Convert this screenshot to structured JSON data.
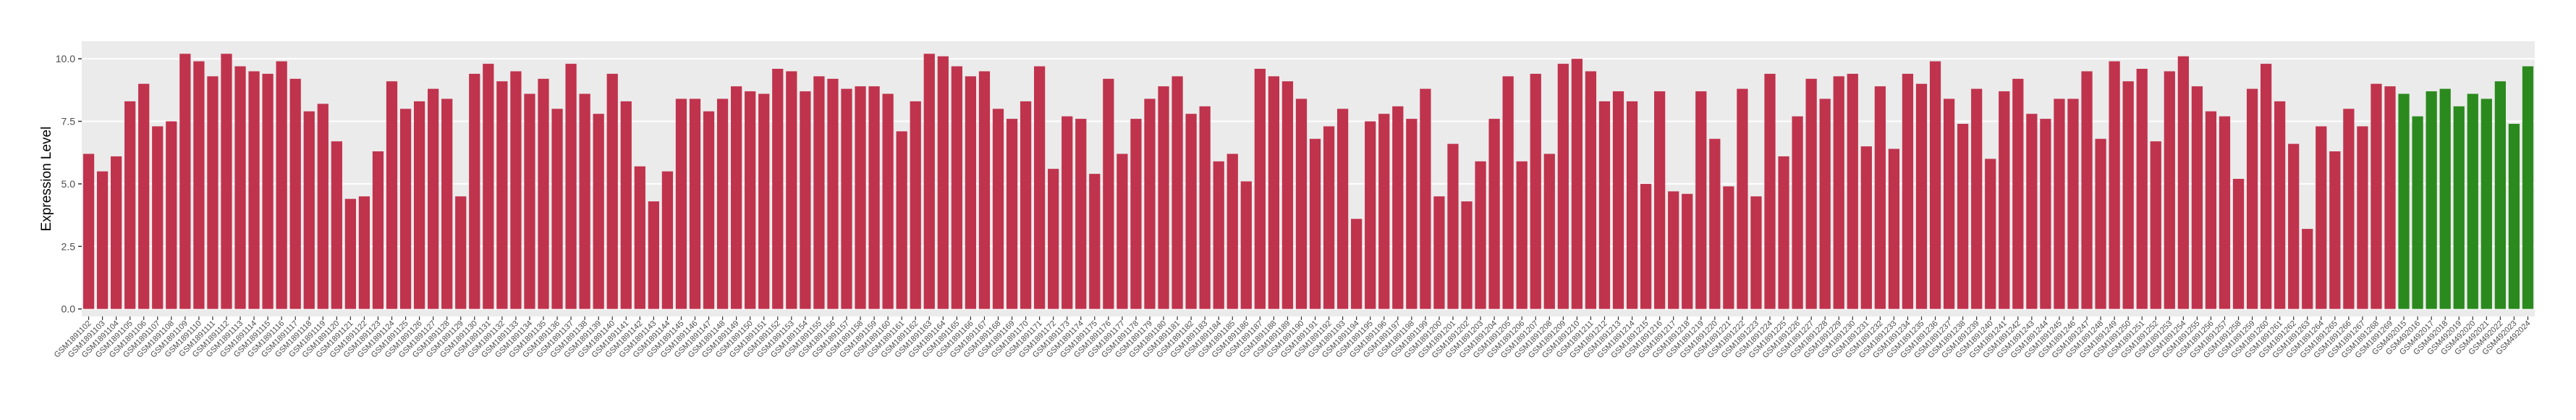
{
  "chart_data": {
    "type": "bar",
    "y_label": "Expression Level",
    "categories": [
      "GSM1891102",
      "GSM1891103",
      "GSM1891104",
      "GSM1891105",
      "GSM1891106",
      "GSM1891107",
      "GSM1891108",
      "GSM1891109",
      "GSM1891110",
      "GSM1891111",
      "GSM1891112",
      "GSM1891113",
      "GSM1891114",
      "GSM1891115",
      "GSM1891116",
      "GSM1891117",
      "GSM1891118",
      "GSM1891119",
      "GSM1891120",
      "GSM1891121",
      "GSM1891122",
      "GSM1891123",
      "GSM1891124",
      "GSM1891125",
      "GSM1891126",
      "GSM1891127",
      "GSM1891128",
      "GSM1891129",
      "GSM1891130",
      "GSM1891131",
      "GSM1891132",
      "GSM1891133",
      "GSM1891134",
      "GSM1891135",
      "GSM1891136",
      "GSM1891137",
      "GSM1891138",
      "GSM1891139",
      "GSM1891140",
      "GSM1891141",
      "GSM1891142",
      "GSM1891143",
      "GSM1891144",
      "GSM1891145",
      "GSM1891146",
      "GSM1891147",
      "GSM1891148",
      "GSM1891149",
      "GSM1891150",
      "GSM1891151",
      "GSM1891152",
      "GSM1891153",
      "GSM1891154",
      "GSM1891155",
      "GSM1891156",
      "GSM1891157",
      "GSM1891158",
      "GSM1891159",
      "GSM1891160",
      "GSM1891161",
      "GSM1891162",
      "GSM1891163",
      "GSM1891164",
      "GSM1891165",
      "GSM1891166",
      "GSM1891167",
      "GSM1891168",
      "GSM1891169",
      "GSM1891170",
      "GSM1891171",
      "GSM1891172",
      "GSM1891173",
      "GSM1891174",
      "GSM1891175",
      "GSM1891176",
      "GSM1891177",
      "GSM1891178",
      "GSM1891179",
      "GSM1891180",
      "GSM1891181",
      "GSM1891182",
      "GSM1891183",
      "GSM1891184",
      "GSM1891185",
      "GSM1891186",
      "GSM1891187",
      "GSM1891188",
      "GSM1891189",
      "GSM1891190",
      "GSM1891191",
      "GSM1891192",
      "GSM1891193",
      "GSM1891194",
      "GSM1891195",
      "GSM1891196",
      "GSM1891197",
      "GSM1891198",
      "GSM1891199",
      "GSM1891200",
      "GSM1891201",
      "GSM1891202",
      "GSM1891203",
      "GSM1891204",
      "GSM1891205",
      "GSM1891206",
      "GSM1891207",
      "GSM1891208",
      "GSM1891209",
      "GSM1891210",
      "GSM1891211",
      "GSM1891212",
      "GSM1891213",
      "GSM1891214",
      "GSM1891215",
      "GSM1891216",
      "GSM1891217",
      "GSM1891218",
      "GSM1891219",
      "GSM1891220",
      "GSM1891221",
      "GSM1891222",
      "GSM1891223",
      "GSM1891224",
      "GSM1891225",
      "GSM1891226",
      "GSM1891227",
      "GSM1891228",
      "GSM1891229",
      "GSM1891230",
      "GSM1891231",
      "GSM1891232",
      "GSM1891233",
      "GSM1891234",
      "GSM1891235",
      "GSM1891236",
      "GSM1891237",
      "GSM1891238",
      "GSM1891239",
      "GSM1891240",
      "GSM1891241",
      "GSM1891242",
      "GSM1891243",
      "GSM1891244",
      "GSM1891245",
      "GSM1891246",
      "GSM1891247",
      "GSM1891248",
      "GSM1891249",
      "GSM1891250",
      "GSM1891251",
      "GSM1891252",
      "GSM1891253",
      "GSM1891254",
      "GSM1891255",
      "GSM1891256",
      "GSM1891257",
      "GSM1891258",
      "GSM1891259",
      "GSM1891260",
      "GSM1891261",
      "GSM1891262",
      "GSM1891263",
      "GSM1891264",
      "GSM1891265",
      "GSM1891266",
      "GSM1891267",
      "GSM1891268",
      "GSM1891269",
      "GSM492015",
      "GSM492016",
      "GSM492017",
      "GSM492018",
      "GSM492019",
      "GSM492020",
      "GSM492021",
      "GSM492022",
      "GSM492023",
      "GSM492024"
    ],
    "values": [
      6.2,
      5.5,
      6.1,
      8.3,
      9.0,
      7.3,
      7.5,
      10.2,
      9.9,
      9.3,
      10.2,
      9.7,
      9.5,
      9.4,
      9.9,
      9.2,
      7.9,
      8.2,
      6.7,
      4.4,
      4.5,
      6.3,
      9.1,
      8.0,
      8.3,
      8.8,
      8.4,
      4.5,
      9.4,
      9.8,
      9.1,
      9.5,
      8.6,
      9.2,
      8.0,
      9.8,
      8.6,
      7.8,
      9.4,
      8.3,
      5.7,
      4.3,
      5.5,
      8.4,
      8.4,
      7.9,
      8.4,
      8.9,
      8.7,
      8.6,
      9.6,
      9.5,
      8.7,
      9.3,
      9.2,
      8.8,
      8.9,
      8.9,
      8.6,
      7.1,
      8.3,
      10.2,
      10.1,
      9.7,
      9.3,
      9.5,
      8.0,
      7.6,
      8.3,
      9.7,
      5.6,
      7.7,
      7.6,
      5.4,
      9.2,
      6.2,
      7.6,
      8.4,
      8.9,
      9.3,
      7.8,
      8.1,
      5.9,
      6.2,
      5.1,
      9.6,
      9.3,
      9.1,
      8.4,
      6.8,
      7.3,
      8.0,
      3.6,
      7.5,
      7.8,
      8.1,
      7.6,
      8.8,
      4.5,
      6.6,
      4.3,
      5.9,
      7.6,
      9.3,
      5.9,
      9.4,
      6.2,
      9.8,
      10.0,
      9.5,
      8.3,
      8.7,
      8.3,
      5.0,
      8.7,
      4.7,
      4.6,
      8.7,
      6.8,
      4.9,
      8.8,
      4.5,
      9.4,
      6.1,
      7.7,
      9.2,
      8.4,
      9.3,
      9.4,
      6.5,
      8.9,
      6.4,
      9.4,
      9.0,
      9.9,
      8.4,
      7.4,
      8.8,
      6.0,
      8.7,
      9.2,
      7.8,
      7.6,
      8.4,
      8.4,
      9.5,
      6.8,
      9.9,
      9.1,
      9.6,
      6.7,
      9.5,
      10.1,
      8.9,
      7.9,
      7.7,
      5.2,
      8.8,
      9.8,
      8.3,
      6.6,
      3.2,
      7.3,
      6.3,
      8.0,
      7.3,
      9.0,
      8.9,
      8.6,
      7.7,
      8.7,
      8.8,
      8.1,
      8.6,
      8.4,
      9.1,
      7.4,
      9.7
    ],
    "colors": [
      "#c0334d",
      "#c0334d",
      "#c0334d",
      "#c0334d",
      "#c0334d",
      "#c0334d",
      "#c0334d",
      "#c0334d",
      "#c0334d",
      "#c0334d",
      "#c0334d",
      "#c0334d",
      "#c0334d",
      "#c0334d",
      "#c0334d",
      "#c0334d",
      "#c0334d",
      "#c0334d",
      "#c0334d",
      "#c0334d",
      "#c0334d",
      "#c0334d",
      "#c0334d",
      "#c0334d",
      "#c0334d",
      "#c0334d",
      "#c0334d",
      "#c0334d",
      "#c0334d",
      "#c0334d",
      "#c0334d",
      "#c0334d",
      "#c0334d",
      "#c0334d",
      "#c0334d",
      "#c0334d",
      "#c0334d",
      "#c0334d",
      "#c0334d",
      "#c0334d",
      "#c0334d",
      "#c0334d",
      "#c0334d",
      "#c0334d",
      "#c0334d",
      "#c0334d",
      "#c0334d",
      "#c0334d",
      "#c0334d",
      "#c0334d",
      "#c0334d",
      "#c0334d",
      "#c0334d",
      "#c0334d",
      "#c0334d",
      "#c0334d",
      "#c0334d",
      "#c0334d",
      "#c0334d",
      "#c0334d",
      "#c0334d",
      "#c0334d",
      "#c0334d",
      "#c0334d",
      "#c0334d",
      "#c0334d",
      "#c0334d",
      "#c0334d",
      "#c0334d",
      "#c0334d",
      "#c0334d",
      "#c0334d",
      "#c0334d",
      "#c0334d",
      "#c0334d",
      "#c0334d",
      "#c0334d",
      "#c0334d",
      "#c0334d",
      "#c0334d",
      "#c0334d",
      "#c0334d",
      "#c0334d",
      "#c0334d",
      "#c0334d",
      "#c0334d",
      "#c0334d",
      "#c0334d",
      "#c0334d",
      "#c0334d",
      "#c0334d",
      "#c0334d",
      "#c0334d",
      "#c0334d",
      "#c0334d",
      "#c0334d",
      "#c0334d",
      "#c0334d",
      "#c0334d",
      "#c0334d",
      "#c0334d",
      "#c0334d",
      "#c0334d",
      "#c0334d",
      "#c0334d",
      "#c0334d",
      "#c0334d",
      "#c0334d",
      "#c0334d",
      "#c0334d",
      "#c0334d",
      "#c0334d",
      "#c0334d",
      "#c0334d",
      "#c0334d",
      "#c0334d",
      "#c0334d",
      "#c0334d",
      "#c0334d",
      "#c0334d",
      "#c0334d",
      "#c0334d",
      "#c0334d",
      "#c0334d",
      "#c0334d",
      "#c0334d",
      "#c0334d",
      "#c0334d",
      "#c0334d",
      "#c0334d",
      "#c0334d",
      "#c0334d",
      "#c0334d",
      "#c0334d",
      "#c0334d",
      "#c0334d",
      "#c0334d",
      "#c0334d",
      "#c0334d",
      "#c0334d",
      "#c0334d",
      "#c0334d",
      "#c0334d",
      "#c0334d",
      "#c0334d",
      "#c0334d",
      "#c0334d",
      "#c0334d",
      "#c0334d",
      "#c0334d",
      "#c0334d",
      "#c0334d",
      "#c0334d",
      "#c0334d",
      "#c0334d",
      "#c0334d",
      "#c0334d",
      "#c0334d",
      "#c0334d",
      "#c0334d",
      "#c0334d",
      "#c0334d",
      "#c0334d",
      "#c0334d",
      "#c0334d",
      "#c0334d",
      "#c0334d",
      "#c0334d",
      "#2b8a1e",
      "#2b8a1e",
      "#2b8a1e",
      "#2b8a1e",
      "#2b8a1e",
      "#2b8a1e",
      "#2b8a1e",
      "#2b8a1e",
      "#2b8a1e",
      "#2b8a1e"
    ],
    "ylim": [
      -0.3,
      10.7
    ],
    "yticks": [
      {
        "value": 0,
        "label": "0.0"
      },
      2.5,
      {
        "value": 5,
        "label": "5.0"
      },
      7.5,
      {
        "value": 10,
        "label": "10.0"
      }
    ],
    "grid": true
  }
}
